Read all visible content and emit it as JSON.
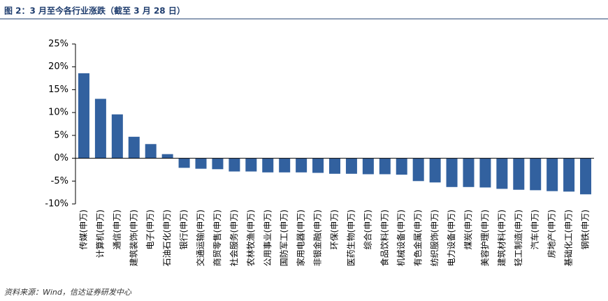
{
  "chart_data": {
    "type": "bar",
    "title": "图 2：3 月至今各行业涨跌（截至 3 月 28 日）",
    "source": "资料来源：Wind，信达证券研发中心",
    "categories": [
      "传媒(申万)",
      "计算机(申万)",
      "通信(申万)",
      "建筑装饰(申万)",
      "电子(申万)",
      "石油石化(申万)",
      "银行(申万)",
      "交通运输(申万)",
      "商贸零售(申万)",
      "社会服务(申万)",
      "农林牧渔(申万)",
      "公用事业(申万)",
      "国防军工(申万)",
      "家用电器(申万)",
      "非银金融(申万)",
      "环保(申万)",
      "医药生物(申万)",
      "综合(申万)",
      "食品饮料(申万)",
      "机械设备(申万)",
      "有色金属(申万)",
      "纺织服饰(申万)",
      "电力设备(申万)",
      "煤炭(申万)",
      "美容护理(申万)",
      "建筑材料(申万)",
      "轻工制造(申万)",
      "汽车(申万)",
      "房地产(申万)",
      "基础化工(申万)",
      "钢铁(申万)"
    ],
    "values": [
      18.6,
      13.0,
      9.6,
      4.7,
      3.1,
      0.9,
      -2.1,
      -2.3,
      -2.4,
      -2.9,
      -2.9,
      -3.1,
      -3.1,
      -3.1,
      -3.2,
      -3.4,
      -3.4,
      -3.5,
      -3.5,
      -3.6,
      -5.0,
      -5.3,
      -6.3,
      -6.3,
      -6.4,
      -6.7,
      -6.9,
      -7.0,
      -7.2,
      -7.3,
      -7.9
    ],
    "color": "#32619f",
    "ylim": [
      -10,
      25
    ],
    "yticks": [
      {
        "value": -10,
        "label": "-10%"
      },
      {
        "value": -5,
        "label": "-5%"
      },
      {
        "value": 0,
        "label": "0%"
      },
      {
        "value": 5,
        "label": "5%"
      },
      {
        "value": 10,
        "label": "10%"
      },
      {
        "value": 15,
        "label": "15%"
      },
      {
        "value": 20,
        "label": "20%"
      },
      {
        "value": 25,
        "label": "25%"
      }
    ],
    "grid": false
  }
}
